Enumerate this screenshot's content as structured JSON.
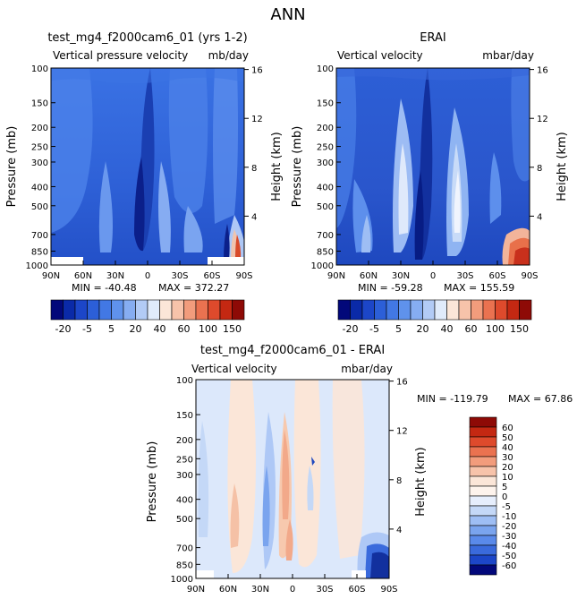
{
  "figure_title": "ANN",
  "chart_data": [
    {
      "type": "heatmap",
      "title": "test_mg4_f2000cam6_01 (yrs 1-2)",
      "subtitle_left": "Vertical pressure velocity",
      "subtitle_right": "mb/day",
      "ylabel": "Pressure (mb)",
      "ylabel_right": "Height (km)",
      "x_ticks": [
        "90N",
        "60N",
        "30N",
        "0",
        "30S",
        "60S",
        "90S"
      ],
      "y_ticks": [
        100,
        150,
        200,
        250,
        300,
        400,
        500,
        700,
        850,
        1000
      ],
      "height_ticks": [
        4,
        8,
        12,
        16
      ],
      "ylim": [
        100,
        1000
      ],
      "xlim": [
        90,
        -90
      ],
      "min_label": "MIN = -40.48",
      "max_label": "MAX = 372.27",
      "colorbar_labels": [
        "-20",
        "-5",
        "5",
        "20",
        "40",
        "60",
        "100",
        "150"
      ]
    },
    {
      "type": "heatmap",
      "title": "ERAI",
      "subtitle_left": "Vertical velocity",
      "subtitle_right": "mbar/day",
      "ylabel": "Pressure (mb)",
      "ylabel_right": "Height (km)",
      "x_ticks": [
        "90N",
        "60N",
        "30N",
        "0",
        "30S",
        "60S",
        "90S"
      ],
      "y_ticks": [
        100,
        150,
        200,
        250,
        300,
        400,
        500,
        700,
        850,
        1000
      ],
      "height_ticks": [
        4,
        8,
        12,
        16
      ],
      "ylim": [
        100,
        1000
      ],
      "xlim": [
        90,
        -90
      ],
      "min_label": "MIN = -59.28",
      "max_label": "MAX = 155.59",
      "colorbar_labels": [
        "-20",
        "-5",
        "5",
        "20",
        "40",
        "60",
        "100",
        "150"
      ]
    },
    {
      "type": "heatmap",
      "title": "test_mg4_f2000cam6_01 - ERAI",
      "subtitle_left": "Vertical velocity",
      "subtitle_right": "mbar/day",
      "ylabel": "Pressure (mb)",
      "ylabel_right": "Height (km)",
      "x_ticks": [
        "90N",
        "60N",
        "30N",
        "0",
        "30S",
        "60S",
        "90S"
      ],
      "y_ticks": [
        100,
        150,
        200,
        250,
        300,
        400,
        500,
        700,
        850,
        1000
      ],
      "height_ticks": [
        4,
        8,
        12,
        16
      ],
      "ylim": [
        100,
        1000
      ],
      "xlim": [
        90,
        -90
      ],
      "min_label": "MIN = -119.79",
      "max_label": "MAX =   67.86",
      "colorbar_labels": [
        "60",
        "50",
        "40",
        "30",
        "20",
        "10",
        "5",
        "0",
        "-5",
        "-10",
        "-20",
        "-30",
        "-40",
        "-50",
        "-60"
      ]
    }
  ]
}
